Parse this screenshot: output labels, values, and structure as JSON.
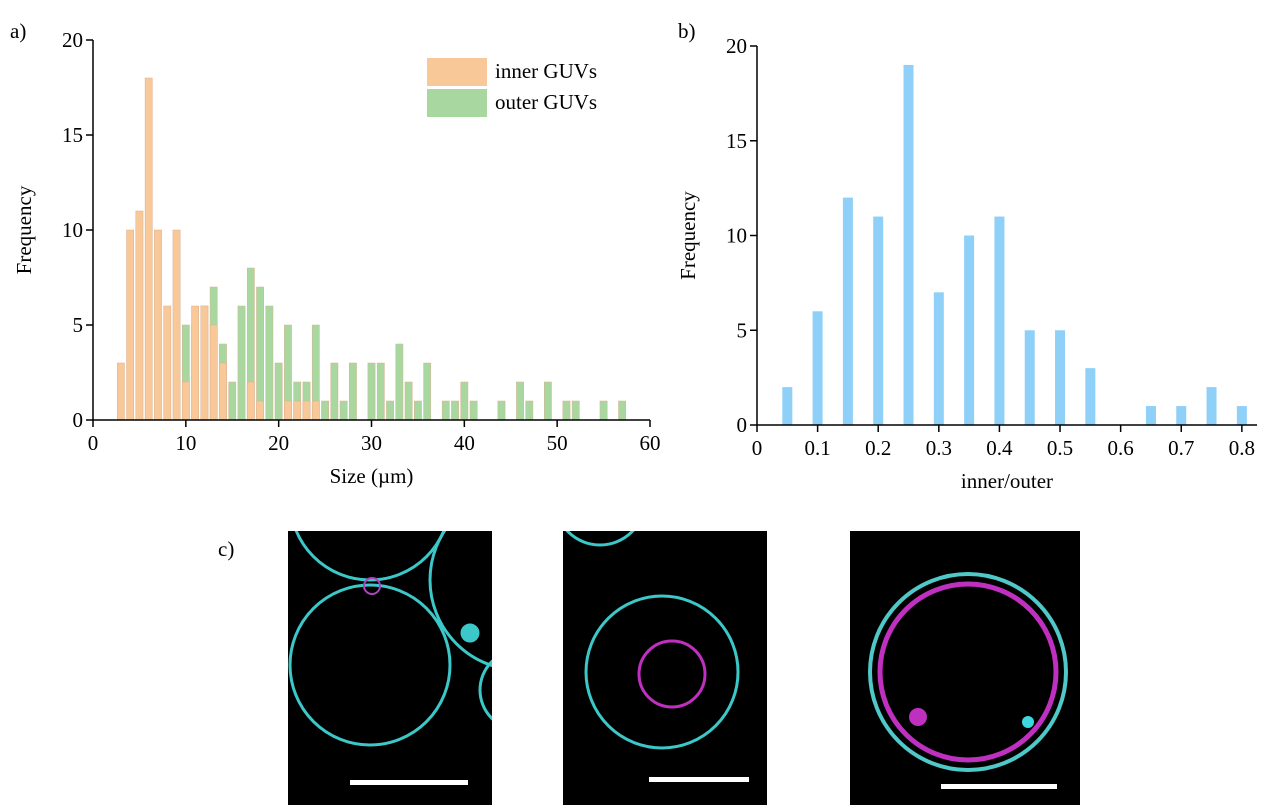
{
  "chart_data": [
    {
      "type": "histogram",
      "label": "a)",
      "x_label": "Size (µm)",
      "y_label": "Frequency",
      "bins": [
        2.5,
        3.5,
        4.5,
        5.5,
        6.5,
        7.5,
        8.5,
        9.5,
        10.5,
        11.5,
        12.5,
        13.5,
        14.5,
        15.5,
        16.5,
        17.5,
        18.5,
        19.5,
        20.5,
        21.5,
        22.5,
        23.5,
        24.5,
        25.5,
        26.5,
        27.5,
        28.5,
        29.5,
        30.5,
        31.5,
        32.5,
        33.5,
        34.5,
        35.5,
        36.5,
        37.5,
        38.5,
        39.5,
        40.5,
        41.5,
        42.5,
        43.5,
        44.5,
        45.5,
        46.5,
        47.5,
        48.5,
        49.5,
        50.5,
        51.5,
        52.5,
        53.5,
        54.5,
        55.5,
        56.5,
        57.5
      ],
      "series": [
        {
          "name": "outer GUVs",
          "color": "#a8d8a0",
          "values": [
            0,
            0,
            0,
            0,
            0,
            0,
            0,
            5,
            5,
            6,
            7,
            4,
            2,
            6,
            8,
            7,
            6,
            3,
            5,
            2,
            2,
            5,
            1,
            3,
            1,
            3,
            0,
            3,
            3,
            1,
            4,
            2,
            1,
            3,
            0,
            1,
            1,
            2,
            1,
            0,
            0,
            1,
            0,
            2,
            1,
            0,
            2,
            0,
            1,
            1,
            0,
            0,
            1,
            0,
            1
          ]
        },
        {
          "name": "inner GUVs",
          "color": "#f9c899",
          "values": [
            3,
            10,
            11,
            18,
            10,
            6,
            10,
            2,
            6,
            6,
            5,
            3,
            0,
            0,
            2,
            1,
            0,
            0,
            1,
            1,
            1,
            1,
            0,
            0,
            0,
            0,
            0,
            0,
            0,
            0,
            0,
            0,
            0,
            0,
            0,
            0,
            0,
            0,
            0,
            0,
            0,
            0,
            0,
            0,
            0,
            0,
            0,
            0,
            0,
            0,
            0,
            0,
            0,
            0,
            0
          ]
        }
      ],
      "legend_order": [
        1,
        0
      ],
      "legend": "upper right",
      "xlim": [
        0,
        60
      ],
      "xticks": [
        0,
        10,
        20,
        30,
        40,
        50,
        60
      ],
      "ylim": [
        0,
        20
      ],
      "yticks": [
        0,
        5,
        10,
        15,
        20
      ]
    },
    {
      "type": "bar",
      "label": "b)",
      "x_label": "inner/outer",
      "y_label": "Frequency",
      "color": "#8fd0f8",
      "x": [
        0.05,
        0.1,
        0.15,
        0.2,
        0.25,
        0.3,
        0.35,
        0.4,
        0.45,
        0.5,
        0.55,
        0.6,
        0.65,
        0.7,
        0.75,
        0.8
      ],
      "values": [
        2,
        6,
        12,
        11,
        19,
        7,
        10,
        11,
        5,
        5,
        3,
        0,
        1,
        1,
        2,
        1
      ],
      "xlim": [
        0,
        0.825
      ],
      "xticks": [
        0,
        0.1,
        0.2,
        0.3,
        0.4,
        0.5,
        0.6,
        0.7,
        0.8
      ],
      "ylim": [
        0,
        20
      ],
      "yticks": [
        0,
        5,
        10,
        15,
        20
      ]
    }
  ],
  "images": {
    "label": "c)"
  }
}
